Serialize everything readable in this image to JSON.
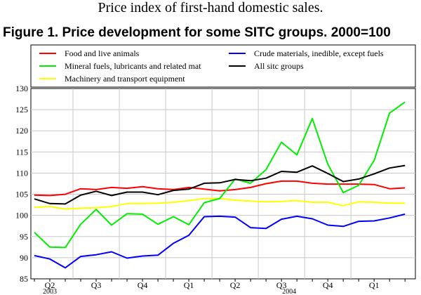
{
  "caption": "Price index of first-hand domestic sales.",
  "chart_data": {
    "type": "line",
    "title": "Figure 1. Price development for some SITC groups. 2000=100",
    "xlabel": "",
    "ylabel": "",
    "ylim": [
      85,
      130
    ],
    "yticks": [
      85,
      90,
      95,
      100,
      105,
      110,
      115,
      120,
      125,
      130
    ],
    "grid": true,
    "legend_position": "top",
    "x_months": [
      "2003-04",
      "2003-05",
      "2003-06",
      "2003-07",
      "2003-08",
      "2003-09",
      "2003-10",
      "2003-11",
      "2003-12",
      "2004-01",
      "2004-02",
      "2004-03",
      "2004-04",
      "2004-05",
      "2004-06",
      "2004-07",
      "2004-08",
      "2004-09",
      "2004-10",
      "2004-11",
      "2004-12",
      "2005-01",
      "2005-02",
      "2005-03",
      "2005-04"
    ],
    "quarter_labels": [
      "Q2",
      "Q3",
      "Q4",
      "Q1",
      "Q2",
      "Q3",
      "Q4",
      "Q1"
    ],
    "year_labels": [
      "2003",
      "2004"
    ],
    "series": [
      {
        "name": "Food and live animals",
        "color": "#ff0000",
        "values": [
          104.8,
          104.7,
          105.0,
          106.3,
          106.1,
          106.6,
          106.4,
          106.8,
          106.3,
          106.1,
          106.6,
          106.2,
          105.8,
          106.1,
          106.6,
          107.5,
          108.1,
          108.1,
          107.6,
          107.4,
          107.4,
          107.4,
          107.3,
          106.3,
          106.5
        ]
      },
      {
        "name": "Mineral fuels, lubricants and related mat",
        "color": "#00ee00",
        "values": [
          96.0,
          92.5,
          92.4,
          97.9,
          101.4,
          97.7,
          100.4,
          100.3,
          97.9,
          99.7,
          97.8,
          103.0,
          104.0,
          108.6,
          107.6,
          110.8,
          117.3,
          114.3,
          122.9,
          112.1,
          105.4,
          107.1,
          113.0,
          124.2,
          126.8
        ]
      },
      {
        "name": "Machinery and transport equipment",
        "color": "#ffff00",
        "values": [
          101.9,
          102.1,
          101.5,
          101.7,
          101.8,
          102.1,
          102.8,
          102.8,
          102.9,
          103.1,
          103.5,
          104.0,
          104.0,
          103.6,
          103.4,
          103.2,
          103.3,
          103.5,
          103.1,
          103.1,
          102.3,
          103.2,
          103.1,
          102.9,
          102.9
        ]
      },
      {
        "name": "Crude materials, inedible, except fuels",
        "color": "#0000ff",
        "values": [
          90.5,
          89.7,
          87.6,
          90.3,
          90.7,
          91.4,
          89.9,
          90.4,
          90.6,
          93.4,
          95.3,
          99.7,
          99.8,
          99.6,
          97.1,
          96.9,
          99.1,
          99.8,
          99.2,
          97.7,
          97.4,
          98.6,
          98.7,
          99.4,
          100.3
        ]
      },
      {
        "name": "All sitc groups",
        "color": "#000000",
        "values": [
          103.9,
          102.8,
          102.7,
          104.8,
          105.7,
          104.7,
          105.5,
          105.5,
          104.9,
          105.9,
          106.2,
          107.6,
          107.7,
          108.5,
          108.2,
          108.8,
          110.4,
          110.2,
          111.7,
          109.9,
          108.0,
          108.6,
          109.8,
          111.2,
          111.8
        ]
      }
    ],
    "legend_order": [
      0,
      3,
      1,
      4,
      2
    ]
  }
}
